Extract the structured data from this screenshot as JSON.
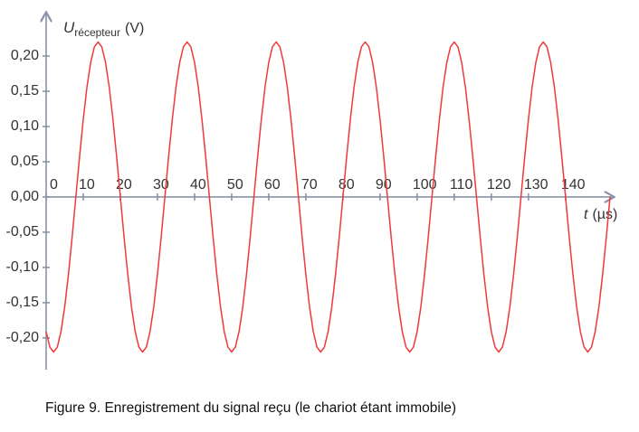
{
  "chart_data": {
    "type": "line",
    "y_label": {
      "symbol": "U",
      "subscript": "récepteur",
      "unit": "(V)"
    },
    "x_label": {
      "symbol": "t",
      "unit": "(µs)"
    },
    "caption": "Figure 9. Enregistrement du signal reçu (le chariot étant immobile)",
    "color": "#f0393c",
    "xlim": [
      0,
      152
    ],
    "ylim": [
      -0.245,
      0.25
    ],
    "xticks": [
      0,
      10,
      20,
      30,
      40,
      50,
      60,
      70,
      80,
      90,
      100,
      110,
      120,
      130,
      140
    ],
    "yticks": [
      {
        "value": 0.2,
        "label": "0,20"
      },
      {
        "value": 0.15,
        "label": "0,15"
      },
      {
        "value": 0.1,
        "label": "0,10"
      },
      {
        "value": 0.05,
        "label": "0,05"
      },
      {
        "value": 0,
        "label": "0,00"
      },
      {
        "value": -0.05,
        "label": "-0,05"
      },
      {
        "value": -0.1,
        "label": "-0,10"
      },
      {
        "value": -0.15,
        "label": "-0,15"
      },
      {
        "value": -0.2,
        "label": "-0,20"
      }
    ],
    "x": [
      0,
      1,
      2,
      3,
      4,
      5,
      6,
      7,
      8,
      9,
      10,
      11,
      12,
      13,
      14,
      15,
      16,
      17,
      18,
      19,
      20,
      21,
      22,
      23,
      24,
      25,
      26,
      27,
      28,
      29,
      30,
      31,
      32,
      33,
      34,
      35,
      36,
      37,
      38,
      39,
      40,
      41,
      42,
      43,
      44,
      45,
      46,
      47,
      48,
      49,
      50,
      51,
      52,
      53,
      54,
      55,
      56,
      57,
      58,
      59,
      60,
      61,
      62,
      63,
      64,
      65,
      66,
      67,
      68,
      69,
      70,
      71,
      72,
      73,
      74,
      75,
      76,
      77,
      78,
      79,
      80,
      81,
      82,
      83,
      84,
      85,
      86,
      87,
      88,
      89,
      90,
      91,
      92,
      93,
      94,
      95,
      96,
      97,
      98,
      99,
      100,
      101,
      102,
      103,
      104,
      105,
      106,
      107,
      108,
      109,
      110,
      111,
      112,
      113,
      114,
      115,
      116,
      117,
      118,
      119,
      120,
      121,
      122,
      123,
      124,
      125,
      126,
      127,
      128,
      129,
      130,
      131,
      132,
      133,
      134,
      135,
      136,
      137,
      138,
      139,
      140,
      141,
      142,
      143,
      144,
      145,
      146,
      147,
      148,
      149,
      150,
      151,
      152
    ],
    "values": [
      -0.191,
      -0.213,
      -0.22,
      -0.213,
      -0.191,
      -0.156,
      -0.11,
      -0.057,
      0,
      0.057,
      0.11,
      0.156,
      0.191,
      0.213,
      0.22,
      0.213,
      0.191,
      0.156,
      0.11,
      0.057,
      0,
      -0.057,
      -0.11,
      -0.156,
      -0.191,
      -0.213,
      -0.22,
      -0.213,
      -0.191,
      -0.156,
      -0.11,
      -0.057,
      0,
      0.057,
      0.11,
      0.156,
      0.191,
      0.213,
      0.22,
      0.213,
      0.191,
      0.156,
      0.11,
      0.057,
      0,
      -0.057,
      -0.11,
      -0.156,
      -0.191,
      -0.213,
      -0.22,
      -0.213,
      -0.191,
      -0.156,
      -0.11,
      -0.057,
      0,
      0.057,
      0.11,
      0.156,
      0.191,
      0.213,
      0.22,
      0.213,
      0.191,
      0.156,
      0.11,
      0.057,
      0,
      -0.057,
      -0.11,
      -0.156,
      -0.191,
      -0.213,
      -0.22,
      -0.213,
      -0.191,
      -0.156,
      -0.11,
      -0.057,
      0,
      0.057,
      0.11,
      0.156,
      0.191,
      0.213,
      0.22,
      0.213,
      0.191,
      0.156,
      0.11,
      0.057,
      0,
      -0.057,
      -0.11,
      -0.156,
      -0.191,
      -0.213,
      -0.22,
      -0.213,
      -0.191,
      -0.156,
      -0.11,
      -0.057,
      0,
      0.057,
      0.11,
      0.156,
      0.191,
      0.213,
      0.22,
      0.213,
      0.191,
      0.156,
      0.11,
      0.057,
      0,
      -0.057,
      -0.11,
      -0.156,
      -0.191,
      -0.213,
      -0.22,
      -0.213,
      -0.191,
      -0.156,
      -0.11,
      -0.057,
      0,
      0.057,
      0.11,
      0.156,
      0.191,
      0.213,
      0.22,
      0.213,
      0.191,
      0.156,
      0.11,
      0.057,
      0,
      -0.057,
      -0.11,
      -0.156,
      -0.191,
      -0.213,
      -0.22,
      -0.213,
      -0.191,
      -0.156,
      -0.11,
      -0.057,
      0
    ]
  }
}
